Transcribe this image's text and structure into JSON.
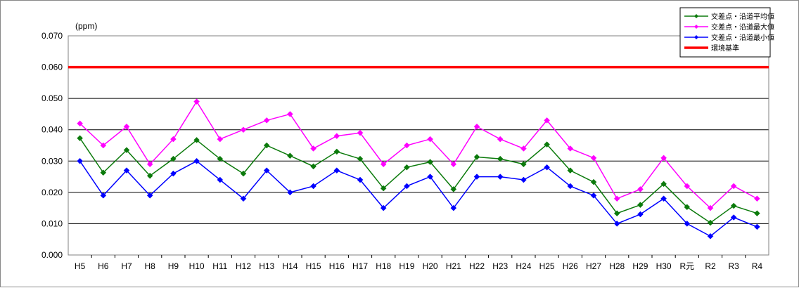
{
  "chart_data": {
    "type": "line",
    "unit_label": "(ppm)",
    "categories": [
      "H5",
      "H6",
      "H7",
      "H8",
      "H9",
      "H10",
      "H11",
      "H12",
      "H13",
      "H14",
      "H15",
      "H16",
      "H17",
      "H18",
      "H19",
      "H20",
      "H21",
      "H22",
      "H23",
      "H24",
      "H25",
      "H26",
      "H27",
      "H28",
      "H29",
      "H30",
      "R元",
      "R2",
      "R3",
      "R4"
    ],
    "y_ticks": [
      "0.000",
      "0.010",
      "0.020",
      "0.030",
      "0.040",
      "0.050",
      "0.060",
      "0.070"
    ],
    "ylim": [
      0,
      0.07
    ],
    "grid": true,
    "legend_position": "top-right",
    "series": [
      {
        "name": "交差点・沿道平均値",
        "color": "#0b7a0b",
        "marker": "diamond",
        "values": [
          0.0373,
          0.0263,
          0.0335,
          0.0253,
          0.0307,
          0.0367,
          0.0307,
          0.026,
          0.035,
          0.0317,
          0.0283,
          0.033,
          0.0307,
          0.0213,
          0.028,
          0.0297,
          0.021,
          0.0313,
          0.0307,
          0.029,
          0.0353,
          0.027,
          0.0233,
          0.0133,
          0.016,
          0.0227,
          0.0153,
          0.0103,
          0.0157,
          0.0133
        ]
      },
      {
        "name": "交差点・沿道最大値",
        "color": "#ff00ff",
        "marker": "diamond",
        "values": [
          0.042,
          0.035,
          0.041,
          0.029,
          0.037,
          0.049,
          0.037,
          0.04,
          0.043,
          0.045,
          0.034,
          0.038,
          0.039,
          0.029,
          0.035,
          0.037,
          0.029,
          0.041,
          0.037,
          0.034,
          0.043,
          0.034,
          0.031,
          0.018,
          0.021,
          0.031,
          0.022,
          0.015,
          0.022,
          0.018
        ]
      },
      {
        "name": "交差点・沿道最小値",
        "color": "#0000ff",
        "marker": "diamond",
        "values": [
          0.03,
          0.019,
          0.027,
          0.019,
          0.026,
          0.03,
          0.024,
          0.018,
          0.027,
          0.02,
          0.022,
          0.027,
          0.024,
          0.015,
          0.022,
          0.025,
          0.015,
          0.025,
          0.025,
          0.024,
          0.028,
          0.022,
          0.019,
          0.01,
          0.013,
          0.018,
          0.01,
          0.006,
          0.012,
          0.009
        ]
      }
    ],
    "reference_line": {
      "name": "環境基準",
      "color": "#ff0000",
      "value": 0.06
    }
  }
}
